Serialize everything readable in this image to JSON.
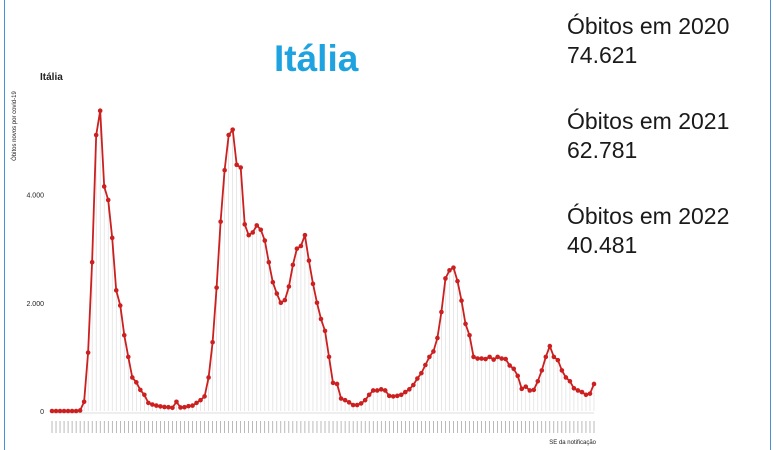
{
  "page_title": "Itália",
  "stats": [
    {
      "label": "Óbitos em 2020",
      "value": "74.621"
    },
    {
      "label": "Óbitos em 2021",
      "value": "62.781"
    },
    {
      "label": "Óbitos em 2022",
      "value": "40.481"
    }
  ],
  "colors": {
    "title": "#1fa3e0",
    "line": "#cc1f1f",
    "frame": "#4a90d9"
  },
  "chart_data": {
    "type": "line",
    "title": "Itália",
    "xlabel": "SE da notificação",
    "ylabel": "Óbitos novos por covid-19",
    "ylim": [
      0,
      5600
    ],
    "yticks": [
      0,
      2000,
      4000
    ],
    "ytick_labels": [
      "0",
      "2.000",
      "4.000"
    ],
    "grid": false,
    "legend": "none",
    "series": [
      {
        "values": [
          0,
          0,
          0,
          0,
          0,
          0,
          0,
          10,
          170,
          1080,
          2750,
          5100,
          5550,
          4150,
          3900,
          3200,
          2230,
          1950,
          1400,
          1000,
          620,
          530,
          390,
          300,
          150,
          120,
          100,
          85,
          75,
          70,
          60,
          170,
          65,
          70,
          90,
          100,
          150,
          200,
          270,
          620,
          1270,
          2280,
          3500,
          4450,
          5100,
          5200,
          4550,
          4500,
          3450,
          3250,
          3300,
          3430,
          3350,
          3150,
          2750,
          2380,
          2170,
          2000,
          2050,
          2300,
          2700,
          3000,
          3050,
          3250,
          2780,
          2350,
          2000,
          1700,
          1480,
          1000,
          520,
          500,
          230,
          200,
          160,
          110,
          110,
          140,
          200,
          300,
          380,
          380,
          400,
          380,
          280,
          270,
          280,
          300,
          350,
          400,
          480,
          600,
          700,
          850,
          1000,
          1100,
          1350,
          1830,
          2450,
          2600,
          2650,
          2400,
          2040,
          1610,
          1400,
          1000,
          970,
          970,
          960,
          1000,
          950,
          1000,
          970,
          960,
          840,
          780,
          650,
          410,
          450,
          380,
          390,
          550,
          750,
          1000,
          1200,
          1000,
          940,
          750,
          620,
          550,
          420,
          380,
          350,
          300,
          320,
          500
        ]
      }
    ]
  }
}
